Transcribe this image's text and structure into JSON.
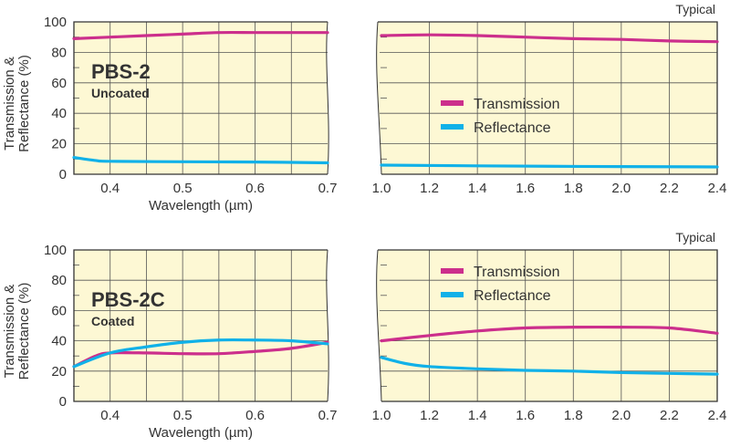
{
  "colors": {
    "transmission": "#cc2f8c",
    "reflectance": "#11b1e8",
    "plot_bg": "#fdf8d4",
    "grid": "#555555"
  },
  "chart_data": [
    {
      "type": "line",
      "title": "PBS-2",
      "subtitle": "Uncoated",
      "xlabel": "Wavelength (µm)",
      "ylabel_line1": "Transmission &",
      "ylabel_line2": "Reflectance (%)",
      "xlim": [
        0.35,
        0.7
      ],
      "ylim": [
        0,
        100
      ],
      "xticks": [
        "0.4",
        "0.5",
        "0.6",
        "0.7"
      ],
      "yticks": [
        "0",
        "20",
        "40",
        "60",
        "80",
        "100"
      ],
      "series": [
        {
          "name": "Transmission",
          "x": [
            0.35,
            0.4,
            0.45,
            0.5,
            0.55,
            0.6,
            0.65,
            0.7
          ],
          "y": [
            89,
            90,
            91,
            92,
            93,
            93,
            93,
            93
          ]
        },
        {
          "name": "Reflectance",
          "x": [
            0.35,
            0.38,
            0.4,
            0.5,
            0.6,
            0.7
          ],
          "y": [
            11,
            9,
            8.5,
            8.2,
            8,
            7.5
          ]
        }
      ]
    },
    {
      "type": "line",
      "note": "Typical",
      "xlim": [
        1.0,
        2.4
      ],
      "ylim": [
        0,
        100
      ],
      "xticks": [
        "1.0",
        "1.2",
        "1.4",
        "1.6",
        "1.8",
        "2.0",
        "2.2",
        "2.4"
      ],
      "legend": [
        "Transmission",
        "Reflectance"
      ],
      "legend_position": "center-left",
      "series": [
        {
          "name": "Transmission",
          "x": [
            1.0,
            1.2,
            1.4,
            1.6,
            1.8,
            2.0,
            2.2,
            2.4
          ],
          "y": [
            91,
            91.5,
            91,
            90,
            89,
            88.5,
            87.5,
            87
          ]
        },
        {
          "name": "Reflectance",
          "x": [
            1.0,
            1.4,
            2.0,
            2.4
          ],
          "y": [
            6,
            5.5,
            5,
            4.8
          ]
        }
      ]
    },
    {
      "type": "line",
      "title": "PBS-2C",
      "subtitle": "Coated",
      "xlabel": "Wavelength (µm)",
      "ylabel_line1": "Transmission &",
      "ylabel_line2": "Reflectance (%)",
      "xlim": [
        0.35,
        0.7
      ],
      "ylim": [
        0,
        100
      ],
      "xticks": [
        "0.4",
        "0.5",
        "0.6",
        "0.7"
      ],
      "yticks": [
        "0",
        "20",
        "40",
        "60",
        "80",
        "100"
      ],
      "series": [
        {
          "name": "Transmission",
          "x": [
            0.35,
            0.38,
            0.4,
            0.45,
            0.5,
            0.55,
            0.6,
            0.65,
            0.7
          ],
          "y": [
            23,
            30,
            32,
            32,
            31.5,
            31.5,
            33,
            35,
            39
          ]
        },
        {
          "name": "Reflectance",
          "x": [
            0.35,
            0.4,
            0.45,
            0.5,
            0.55,
            0.6,
            0.65,
            0.7
          ],
          "y": [
            23,
            32,
            36,
            39,
            40.5,
            40.5,
            40,
            38
          ]
        }
      ]
    },
    {
      "type": "line",
      "note": "Typical",
      "xlim": [
        1.0,
        2.4
      ],
      "ylim": [
        0,
        100
      ],
      "xticks": [
        "1.0",
        "1.2",
        "1.4",
        "1.6",
        "1.8",
        "2.0",
        "2.2",
        "2.4"
      ],
      "legend": [
        "Transmission",
        "Reflectance"
      ],
      "legend_position": "top-left",
      "series": [
        {
          "name": "Transmission",
          "x": [
            1.0,
            1.2,
            1.4,
            1.6,
            1.8,
            2.0,
            2.2,
            2.4
          ],
          "y": [
            40,
            43.5,
            46.5,
            48.5,
            49,
            49,
            48.5,
            45
          ]
        },
        {
          "name": "Reflectance",
          "x": [
            1.0,
            1.1,
            1.2,
            1.4,
            1.6,
            1.8,
            2.0,
            2.2,
            2.4
          ],
          "y": [
            29,
            25,
            23,
            21.5,
            20.5,
            20,
            19,
            18.5,
            18
          ]
        }
      ]
    }
  ]
}
